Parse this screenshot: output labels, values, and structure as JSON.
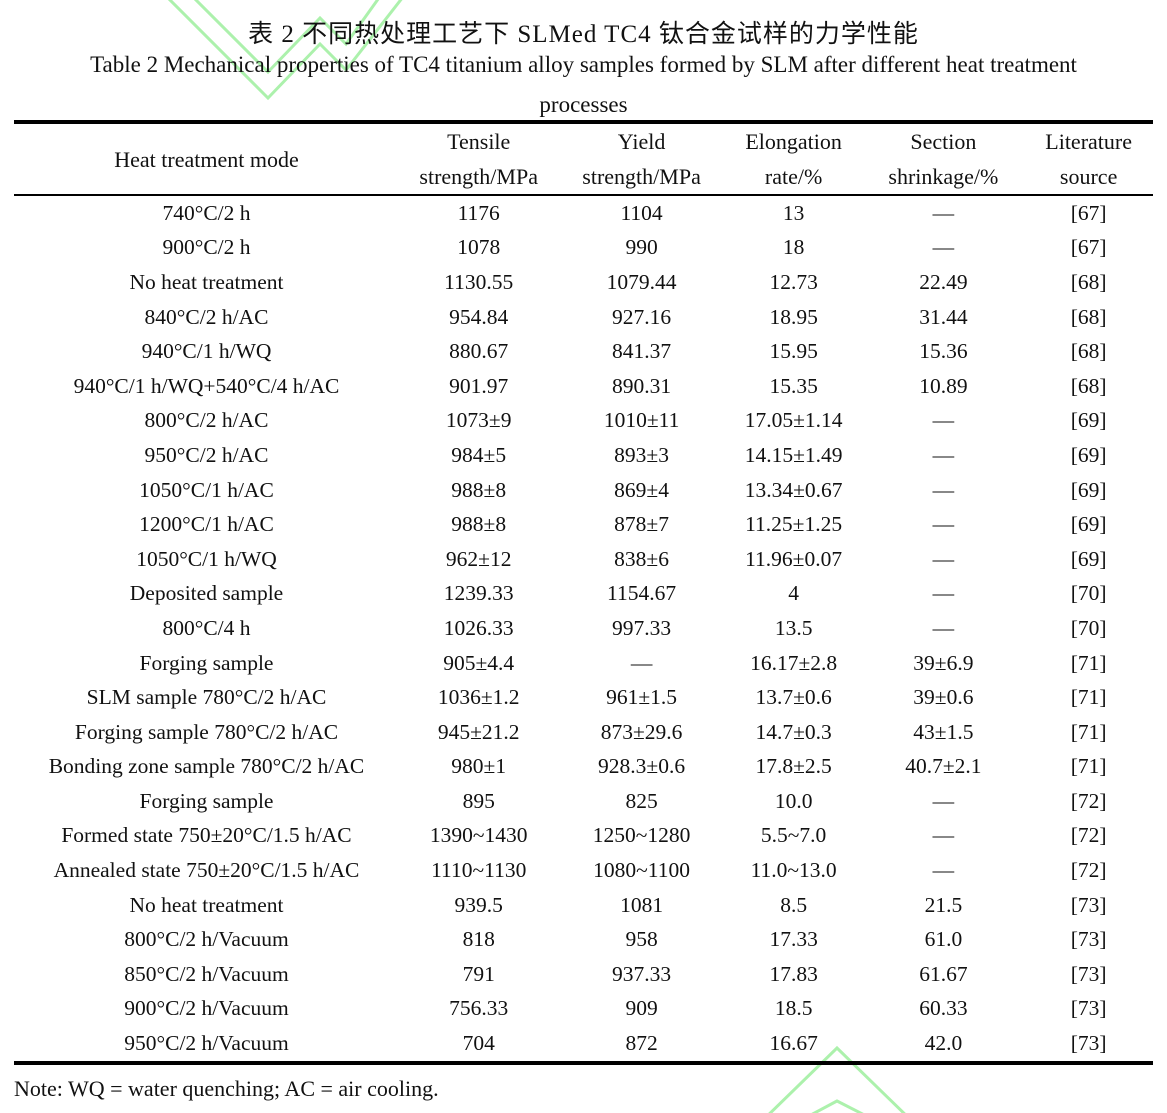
{
  "page": {
    "title_zh": "表 2  不同热处理工艺下 SLMed TC4 钛合金试样的力学性能",
    "title_en_line1": "Table 2 Mechanical properties of TC4 titanium alloy samples formed by SLM after different heat treatment",
    "title_en_line2": "processes",
    "note": "Note: WQ = water quenching; AC = air cooling."
  },
  "watermark": {
    "color": "#98ee98",
    "shape": "nested light-green chevron lines, top-left and bottom-center"
  },
  "table": {
    "headers": [
      {
        "line1": "Heat treatment mode",
        "line2": ""
      },
      {
        "line1": "Tensile",
        "line2": "strength/MPa"
      },
      {
        "line1": "Yield",
        "line2": "strength/MPa"
      },
      {
        "line1": "Elongation",
        "line2": "rate/%"
      },
      {
        "line1": "Section",
        "line2": "shrinkage/%"
      },
      {
        "line1": "Literature",
        "line2": "source"
      }
    ],
    "rows": [
      [
        "740°C/2 h",
        "1176",
        "1104",
        "13",
        "—",
        "[67]"
      ],
      [
        "900°C/2 h",
        "1078",
        "990",
        "18",
        "—",
        "[67]"
      ],
      [
        "No heat treatment",
        "1130.55",
        "1079.44",
        "12.73",
        "22.49",
        "[68]"
      ],
      [
        "840°C/2 h/AC",
        "954.84",
        "927.16",
        "18.95",
        "31.44",
        "[68]"
      ],
      [
        "940°C/1 h/WQ",
        "880.67",
        "841.37",
        "15.95",
        "15.36",
        "[68]"
      ],
      [
        "940°C/1 h/WQ+540°C/4 h/AC",
        "901.97",
        "890.31",
        "15.35",
        "10.89",
        "[68]"
      ],
      [
        "800°C/2 h/AC",
        "1073±9",
        "1010±11",
        "17.05±1.14",
        "—",
        "[69]"
      ],
      [
        "950°C/2 h/AC",
        "984±5",
        "893±3",
        "14.15±1.49",
        "—",
        "[69]"
      ],
      [
        "1050°C/1 h/AC",
        "988±8",
        "869±4",
        "13.34±0.67",
        "—",
        "[69]"
      ],
      [
        "1200°C/1 h/AC",
        "988±8",
        "878±7",
        "11.25±1.25",
        "—",
        "[69]"
      ],
      [
        "1050°C/1 h/WQ",
        "962±12",
        "838±6",
        "11.96±0.07",
        "—",
        "[69]"
      ],
      [
        "Deposited sample",
        "1239.33",
        "1154.67",
        "4",
        "—",
        "[70]"
      ],
      [
        "800°C/4 h",
        "1026.33",
        "997.33",
        "13.5",
        "—",
        "[70]"
      ],
      [
        "Forging sample",
        "905±4.4",
        "—",
        "16.17±2.8",
        "39±6.9",
        "[71]"
      ],
      [
        "SLM sample 780°C/2 h/AC",
        "1036±1.2",
        "961±1.5",
        "13.7±0.6",
        "39±0.6",
        "[71]"
      ],
      [
        "Forging sample 780°C/2 h/AC",
        "945±21.2",
        "873±29.6",
        "14.7±0.3",
        "43±1.5",
        "[71]"
      ],
      [
        "Bonding zone sample 780°C/2 h/AC",
        "980±1",
        "928.3±0.6",
        "17.8±2.5",
        "40.7±2.1",
        "[71]"
      ],
      [
        "Forging sample",
        "895",
        "825",
        "10.0",
        "—",
        "[72]"
      ],
      [
        "Formed state 750±20°C/1.5 h/AC",
        "1390~1430",
        "1250~1280",
        "5.5~7.0",
        "—",
        "[72]"
      ],
      [
        "Annealed state 750±20°C/1.5 h/AC",
        "1110~1130",
        "1080~1100",
        "11.0~13.0",
        "—",
        "[72]"
      ],
      [
        "No heat treatment",
        "939.5",
        "1081",
        "8.5",
        "21.5",
        "[73]"
      ],
      [
        "800°C/2 h/Vacuum",
        "818",
        "958",
        "17.33",
        "61.0",
        "[73]"
      ],
      [
        "850°C/2 h/Vacuum",
        "791",
        "937.33",
        "17.83",
        "61.67",
        "[73]"
      ],
      [
        "900°C/2 h/Vacuum",
        "756.33",
        "909",
        "18.5",
        "60.33",
        "[73]"
      ],
      [
        "950°C/2 h/Vacuum",
        "704",
        "872",
        "16.67",
        "42.0",
        "[73]"
      ]
    ]
  }
}
